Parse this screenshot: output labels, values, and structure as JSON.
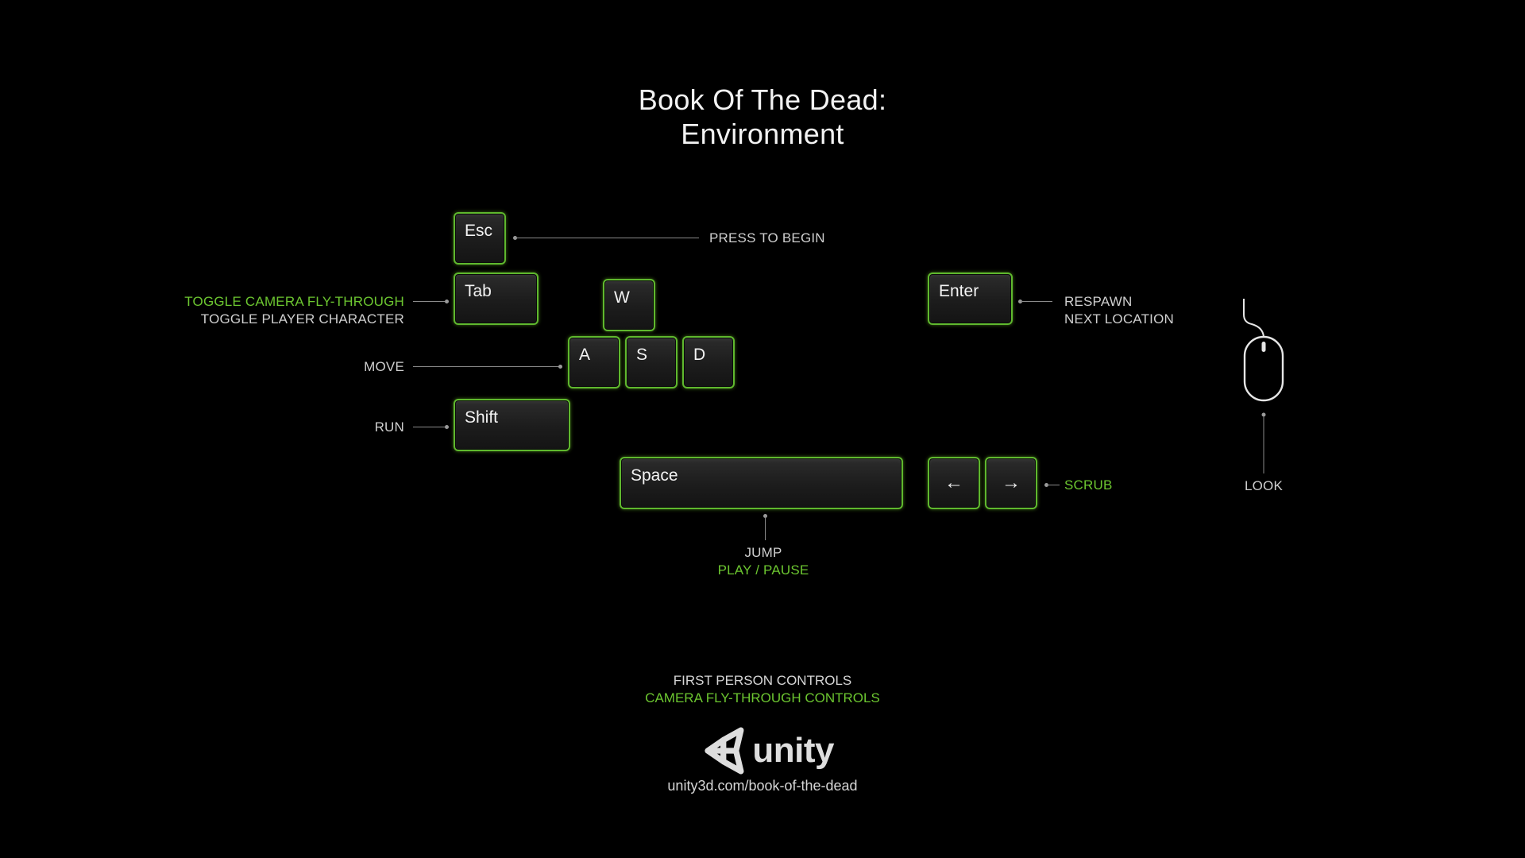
{
  "header": {
    "title_line1": "Book Of The Dead:",
    "title_line2": "Environment"
  },
  "keys": {
    "esc": "Esc",
    "tab": "Tab",
    "w": "W",
    "a": "A",
    "s": "S",
    "d": "D",
    "shift": "Shift",
    "space": "Space",
    "enter": "Enter",
    "left_arrow": "←",
    "right_arrow": "→"
  },
  "labels": {
    "press_to_begin": "PRESS TO BEGIN",
    "toggle_camera": "TOGGLE CAMERA FLY-THROUGH",
    "toggle_player": "TOGGLE PLAYER CHARACTER",
    "move": "MOVE",
    "run": "RUN",
    "respawn": "RESPAWN",
    "next_location": "NEXT LOCATION",
    "scrub": "SCRUB",
    "look": "LOOK",
    "jump": "JUMP",
    "play_pause": "PLAY / PAUSE"
  },
  "legend": {
    "first_person": "FIRST PERSON CONTROLS",
    "camera_fly": "CAMERA FLY-THROUGH CONTROLS"
  },
  "branding": {
    "logo_text": "unity",
    "url": "unity3d.com/book-of-the-dead"
  },
  "colors": {
    "background": "#000000",
    "accent_green": "#6cc630",
    "key_border": "#5fb82e",
    "text": "#cfcfcf"
  }
}
